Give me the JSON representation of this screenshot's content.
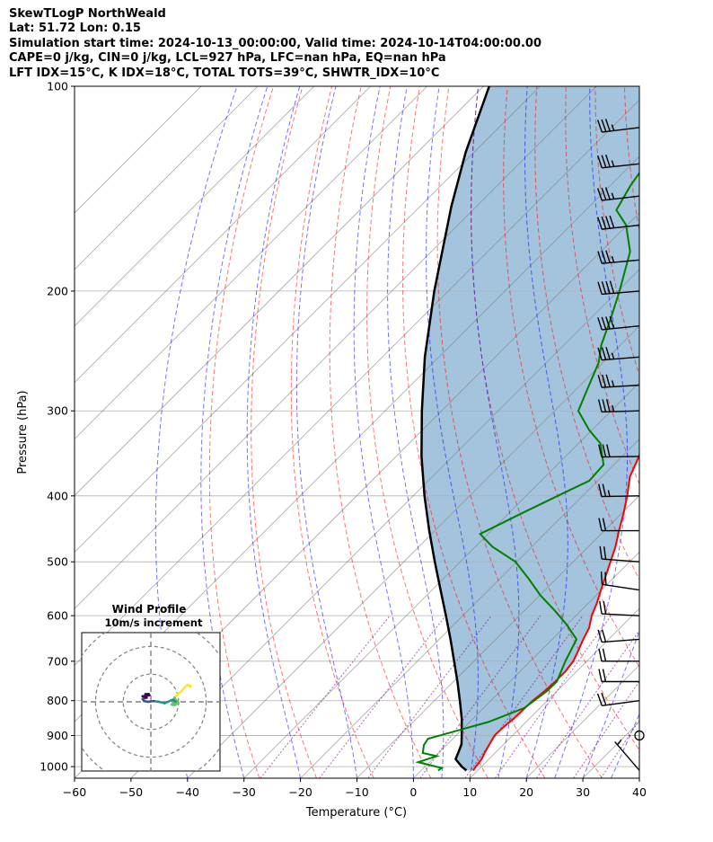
{
  "header": {
    "line1": "SkewTLogP NorthWeald",
    "line2": "Lat: 51.72   Lon: 0.15",
    "line3": "Simulation start time: 2024-10-13_00:00:00, Valid time: 2024-10-14T04:00:00.00",
    "line4": "CAPE=0 j/kg, CIN=0 j/kg, LCL=927 hPa, LFC=nan hPa, EQ=nan hPa",
    "line5": "LFT IDX=15°C, K IDX=18°C, TOTAL TOTS=39°C, SHWTR_IDX=10°C"
  },
  "chart_data": {
    "type": "skew-t",
    "xlabel": "Temperature (°C)",
    "ylabel": "Pressure (hPa)",
    "xlim": [
      -60,
      40
    ],
    "ylim": [
      1040,
      100
    ],
    "x_ticks": [
      -60,
      -50,
      -40,
      -30,
      -20,
      -10,
      0,
      10,
      20,
      30,
      40
    ],
    "x_tick_labels": [
      "−60",
      "−50",
      "−40",
      "−30",
      "−20",
      "−10",
      "0",
      "10",
      "20",
      "30",
      "40"
    ],
    "y_ticks": [
      1000,
      900,
      800,
      700,
      600,
      500,
      400,
      300,
      200,
      100
    ],
    "y_tick_labels": [
      "1000",
      "900",
      "800",
      "700",
      "600",
      "500",
      "400",
      "300",
      "200",
      "100"
    ],
    "grid": true,
    "series": [
      {
        "kind": "temperature",
        "color": "#ff0000",
        "points": [
          [
            1013,
            9.2
          ],
          [
            1000,
            9.0
          ],
          [
            975,
            8.7
          ],
          [
            950,
            8.0
          ],
          [
            925,
            7.4
          ],
          [
            900,
            6.8
          ],
          [
            875,
            6.9
          ],
          [
            850,
            7.2
          ],
          [
            825,
            7.3
          ],
          [
            800,
            7.4
          ],
          [
            775,
            7.8
          ],
          [
            750,
            8.0
          ],
          [
            725,
            8.0
          ],
          [
            700,
            7.6
          ],
          [
            675,
            6.6
          ],
          [
            650,
            5.5
          ],
          [
            625,
            4.5
          ],
          [
            600,
            2.8
          ],
          [
            575,
            1.5
          ],
          [
            550,
            -0.1
          ],
          [
            525,
            -1.7
          ],
          [
            500,
            -3.4
          ],
          [
            475,
            -5.2
          ],
          [
            450,
            -7.4
          ],
          [
            425,
            -9.6
          ],
          [
            400,
            -12.1
          ],
          [
            375,
            -15.0
          ],
          [
            350,
            -17.0
          ],
          [
            330,
            -19.0
          ],
          [
            310,
            -20.5
          ],
          [
            300,
            -22.0
          ],
          [
            280,
            -25.8
          ],
          [
            260,
            -29.5
          ],
          [
            250,
            -31.8
          ],
          [
            230,
            -36.6
          ],
          [
            210,
            -41.2
          ],
          [
            200,
            -43.8
          ],
          [
            185,
            -48.0
          ],
          [
            170,
            -51.8
          ],
          [
            150,
            -56.4
          ],
          [
            140,
            -59.0
          ],
          [
            125,
            -62.8
          ],
          [
            112,
            -65.2
          ],
          [
            105,
            -66.6
          ],
          [
            100,
            -67.4
          ]
        ]
      },
      {
        "kind": "dewpoint",
        "color": "#008000",
        "points": [
          [
            1013,
            3.0
          ],
          [
            1005,
            3.2
          ],
          [
            985,
            -2.0
          ],
          [
            965,
            0.2
          ],
          [
            955,
            -2.8
          ],
          [
            930,
            -4.0
          ],
          [
            910,
            -4.4
          ],
          [
            860,
            3.3
          ],
          [
            820,
            7.2
          ],
          [
            775,
            8.2
          ],
          [
            750,
            8.3
          ],
          [
            700,
            6.2
          ],
          [
            650,
            4.3
          ],
          [
            620,
            0.2
          ],
          [
            590,
            -4.6
          ],
          [
            560,
            -9.9
          ],
          [
            530,
            -14.8
          ],
          [
            500,
            -20.2
          ],
          [
            475,
            -27.0
          ],
          [
            455,
            -31.4
          ],
          [
            425,
            -27.8
          ],
          [
            400,
            -24.4
          ],
          [
            380,
            -21.5
          ],
          [
            360,
            -21.8
          ],
          [
            335,
            -26.1
          ],
          [
            320,
            -30.5
          ],
          [
            300,
            -35.8
          ],
          [
            280,
            -37.9
          ],
          [
            255,
            -40.7
          ],
          [
            240,
            -43.4
          ],
          [
            220,
            -46.3
          ],
          [
            200,
            -49.7
          ],
          [
            175,
            -54.8
          ],
          [
            160,
            -60.2
          ],
          [
            152,
            -64.6
          ],
          [
            140,
            -66.4
          ],
          [
            120,
            -68.8
          ],
          [
            100,
            -71.2
          ]
        ]
      },
      {
        "kind": "parcel",
        "color": "#000000",
        "points": [
          [
            1013,
            8.0
          ],
          [
            1000,
            6.5
          ],
          [
            975,
            4.1
          ],
          [
            950,
            3.3
          ],
          [
            927,
            2.5
          ],
          [
            900,
            1.0
          ],
          [
            850,
            -2.0
          ],
          [
            800,
            -5.5
          ],
          [
            750,
            -9.3
          ],
          [
            700,
            -13.5
          ],
          [
            650,
            -18.0
          ],
          [
            600,
            -23.0
          ],
          [
            550,
            -28.5
          ],
          [
            500,
            -34.5
          ],
          [
            450,
            -41.0
          ],
          [
            400,
            -48.0
          ],
          [
            350,
            -55.5
          ],
          [
            300,
            -63.5
          ],
          [
            250,
            -72.5
          ],
          [
            200,
            -82.5
          ],
          [
            150,
            -94.5
          ],
          [
            125,
            -101.5
          ],
          [
            100,
            -109.0
          ]
        ]
      }
    ],
    "wind_barbs": [
      {
        "p": 1013,
        "u": 3.0,
        "v": -3.5
      },
      {
        "p": 900,
        "u": 0.0,
        "v": 0.0
      },
      {
        "p": 800,
        "u": 18.5,
        "v": 2.5
      },
      {
        "p": 750,
        "u": 20.0,
        "v": 0.0
      },
      {
        "p": 700,
        "u": 20.0,
        "v": 0.0
      },
      {
        "p": 650,
        "u": 20.0,
        "v": 1.5
      },
      {
        "p": 600,
        "u": 20.0,
        "v": -1.0
      },
      {
        "p": 550,
        "u": 20.0,
        "v": -3.0
      },
      {
        "p": 500,
        "u": 20.0,
        "v": -1.5
      },
      {
        "p": 450,
        "u": 20.0,
        "v": 0.0
      },
      {
        "p": 400,
        "u": 27.0,
        "v": 0.5
      },
      {
        "p": 350,
        "u": 32.0,
        "v": 0.5
      },
      {
        "p": 300,
        "u": 35.0,
        "v": 1.0
      },
      {
        "p": 275,
        "u": 33.0,
        "v": 2.0
      },
      {
        "p": 250,
        "u": 37.0,
        "v": 3.0
      },
      {
        "p": 225,
        "u": 39.0,
        "v": 4.0
      },
      {
        "p": 200,
        "u": 42.0,
        "v": 3.5
      },
      {
        "p": 180,
        "u": 37.0,
        "v": 3.5
      },
      {
        "p": 160,
        "u": 41.0,
        "v": 4.5
      },
      {
        "p": 145,
        "u": 34.0,
        "v": 4.0
      },
      {
        "p": 130,
        "u": 37.0,
        "v": 4.0
      },
      {
        "p": 115,
        "u": 33.0,
        "v": 4.0
      }
    ],
    "hodograph": {
      "title": "Wind Profile",
      "subtitle": "10m/s increment",
      "rings": [
        10,
        20,
        30
      ],
      "range": [
        -25,
        25
      ],
      "points": [
        [
          13.5,
          6.2
        ],
        [
          12.5,
          5.5
        ],
        [
          11.0,
          3.8
        ],
        [
          9.5,
          2.5
        ],
        [
          8.5,
          1.5
        ],
        [
          10.0,
          -0.5
        ],
        [
          8.5,
          -1.2
        ],
        [
          7.5,
          -1.0
        ],
        [
          9.0,
          0.0
        ],
        [
          8.0,
          0.8
        ],
        [
          5.0,
          -0.5
        ],
        [
          3.0,
          0.0
        ],
        [
          1.0,
          0.3
        ],
        [
          -1.0,
          0.0
        ],
        [
          -2.5,
          0.3
        ],
        [
          -3.0,
          1.0
        ],
        [
          -1.5,
          1.5
        ],
        [
          -3.0,
          2.0
        ],
        [
          -0.5,
          2.4
        ],
        [
          -0.8,
          2.8
        ],
        [
          -2.0,
          2.8
        ]
      ],
      "surface_point": [
        14.5,
        5.5
      ]
    },
    "colors": {
      "cape_fill": "#a3c4dc",
      "dry_adiabats": "#ff0000",
      "moist_adiabats": "#0000ff",
      "isotherms": "#808080",
      "mixing_ratio": "#800080",
      "temperature": "#ff0000",
      "dewpoint": "#008000",
      "parcel": "#000000"
    }
  }
}
